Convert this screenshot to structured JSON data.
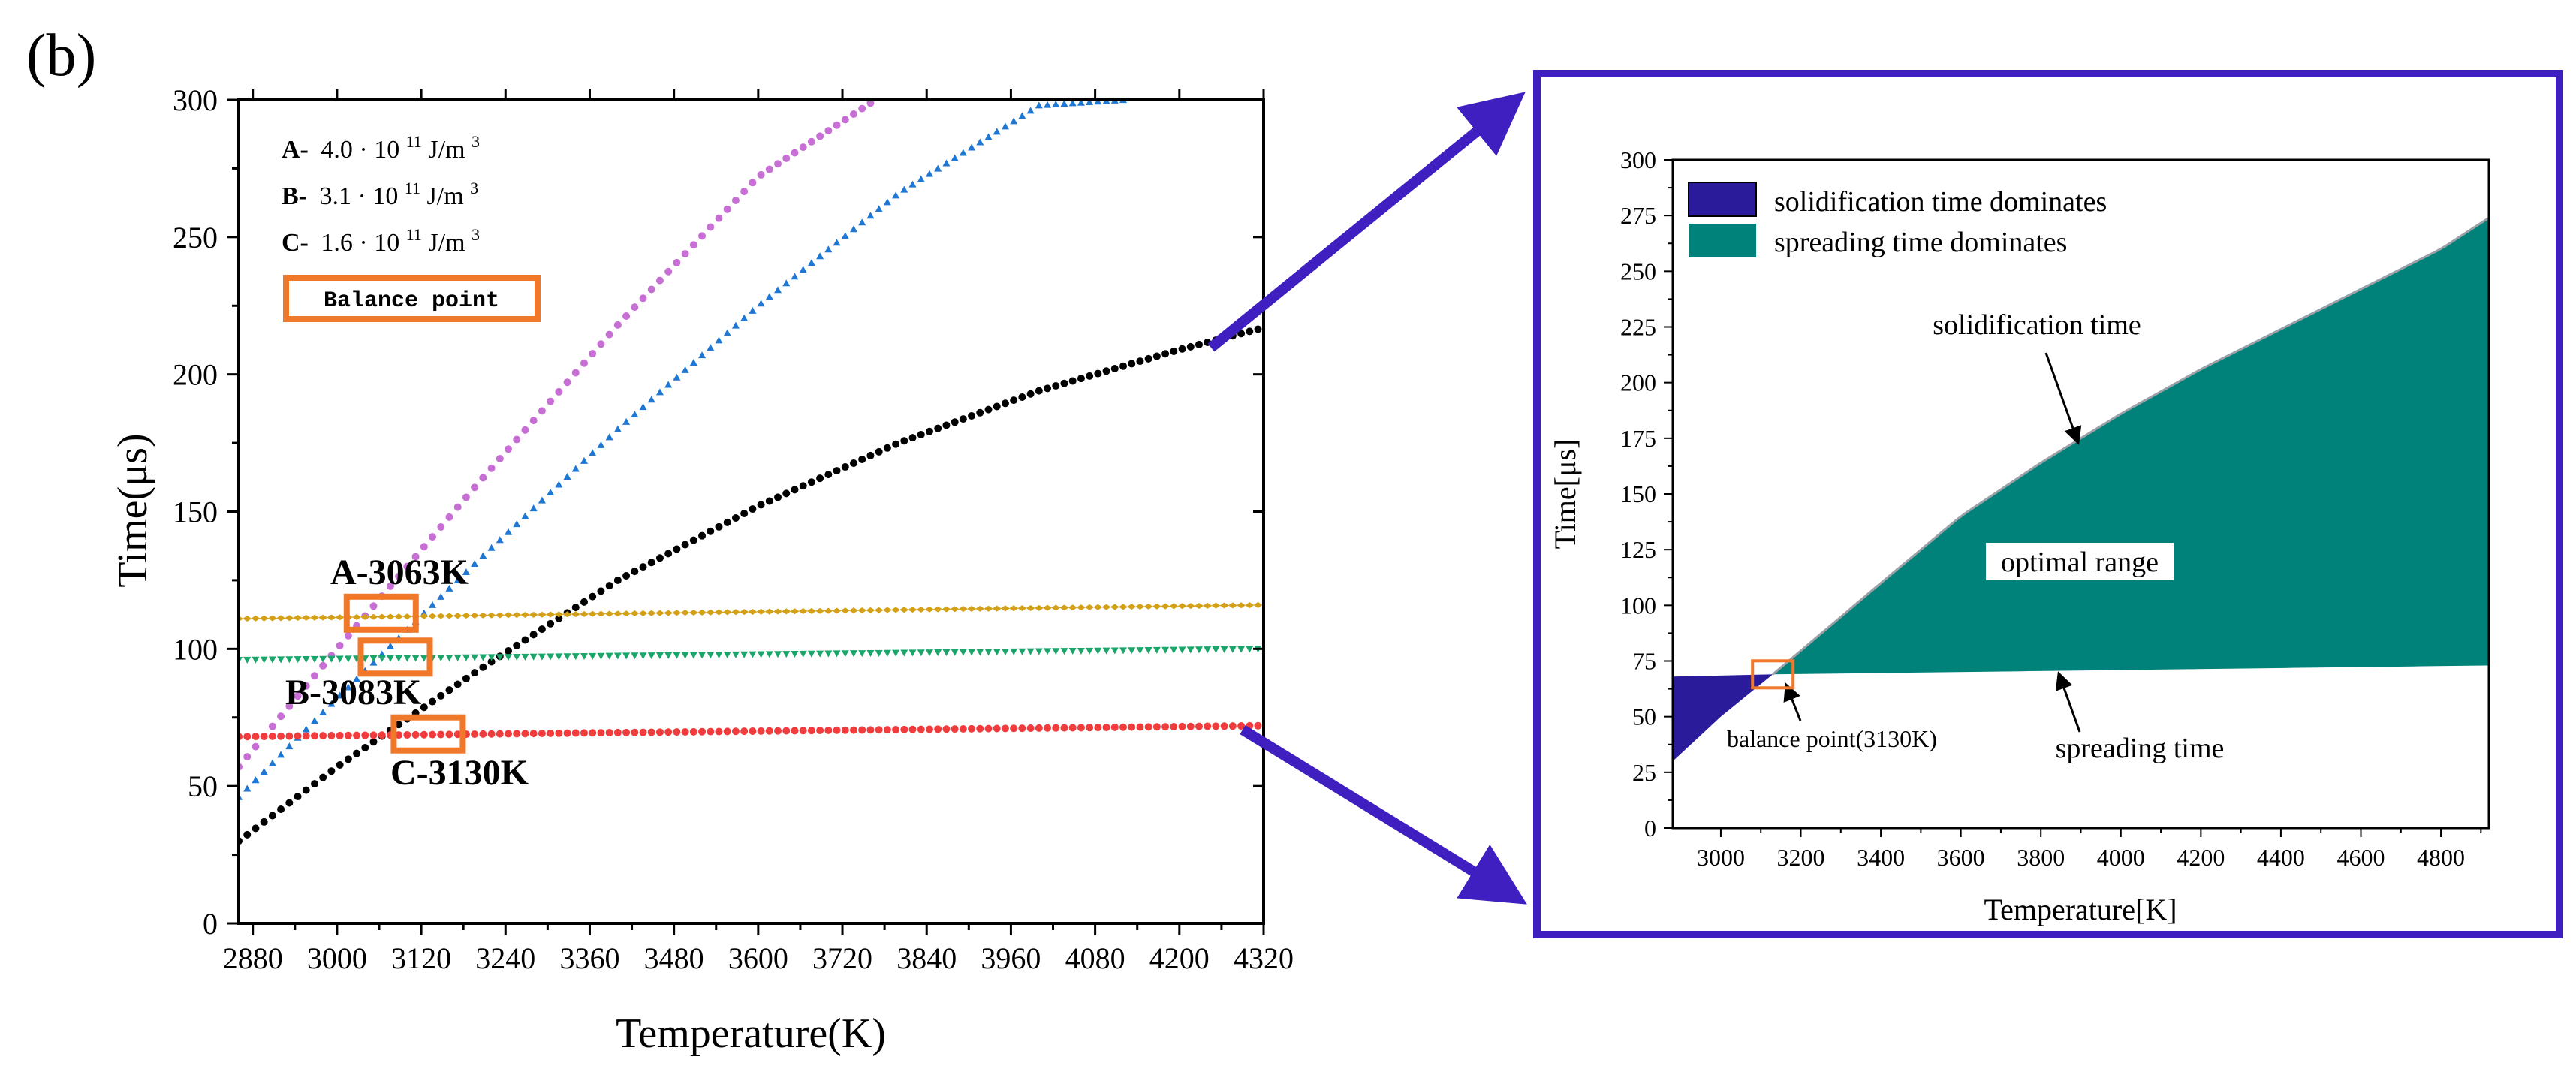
{
  "panel_label": "(b)",
  "colors": {
    "axis": "#000000",
    "series_a": "#c86fd6",
    "series_b": "#1f77d4",
    "series_c": "#000000",
    "spread_a": "#d4a017",
    "spread_b": "#1aa66a",
    "spread_c": "#f03c3c",
    "balance_box": "#f07828",
    "inset_frame": "#3f1fc0",
    "arrow": "#3f1fc0",
    "fill_solidification": "#2a1b9a",
    "fill_spreading": "#00817a"
  },
  "left_chart": {
    "xlabel": "Temperature(K)",
    "ylabel": "Time(μs)",
    "legend": [
      {
        "key": "A-",
        "text": "4.0 · 10",
        "exp": "11",
        "unit": " J/m",
        "unit_exp": "3"
      },
      {
        "key": "B-",
        "text": "3.1 · 10",
        "exp": "11",
        "unit": " J/m",
        "unit_exp": "3"
      },
      {
        "key": "C-",
        "text": "1.6 · 10",
        "exp": "11",
        "unit": " J/m",
        "unit_exp": "3"
      }
    ],
    "balance_legend_label": "Balance point",
    "annotations": [
      {
        "id": "A",
        "text": "A-3063K"
      },
      {
        "id": "B",
        "text": "B-3083K"
      },
      {
        "id": "C",
        "text": "C-3130K"
      }
    ]
  },
  "right_chart": {
    "xlabel": "Temperature[K]",
    "ylabel": "Time[μs]",
    "legend": [
      {
        "text": "solidification time dominates",
        "fill": "fill_solidification"
      },
      {
        "text": "spreading time dominates",
        "fill": "fill_spreading"
      }
    ],
    "annotations": {
      "solidification": "solidification time",
      "optimal": "optimal range",
      "balance": "balance point(3130K)",
      "spreading": "spreading time"
    }
  },
  "chart_data": [
    {
      "type": "scatter",
      "xlim": [
        2860,
        4320
      ],
      "ylim": [
        0,
        300
      ],
      "x_ticks": [
        2880,
        3000,
        3120,
        3240,
        3360,
        3480,
        3600,
        3720,
        3840,
        3960,
        4080,
        4200,
        4320
      ],
      "y_ticks": [
        0,
        50,
        100,
        150,
        200,
        250,
        300
      ],
      "series": [
        {
          "name": "A-",
          "role": "solidification",
          "color": "#c86fd6",
          "x": [
            2860,
            3000,
            3200,
            3400,
            3600,
            3767
          ],
          "y": [
            57,
            100,
            160,
            218,
            272,
            300
          ]
        },
        {
          "name": "B-",
          "role": "solidification",
          "color": "#1f77d4",
          "x": [
            2860,
            3000,
            3200,
            3400,
            3600,
            3800,
            4000,
            4122
          ],
          "y": [
            46,
            82,
            132,
            180,
            225,
            266,
            298,
            300
          ]
        },
        {
          "name": "C-",
          "role": "solidification",
          "color": "#000000",
          "x": [
            2860,
            3000,
            3200,
            3400,
            3600,
            3800,
            4000,
            4200,
            4320
          ],
          "y": [
            30,
            57,
            92,
            125,
            152,
            175,
            194,
            209,
            217
          ]
        },
        {
          "name": "A-",
          "role": "spreading",
          "color": "#d4a017",
          "x": [
            2860,
            4320
          ],
          "y": [
            111,
            116
          ]
        },
        {
          "name": "B-",
          "role": "spreading",
          "color": "#1aa66a",
          "x": [
            2860,
            4320
          ],
          "y": [
            96,
            100
          ]
        },
        {
          "name": "C-",
          "role": "spreading",
          "color": "#f03c3c",
          "x": [
            2860,
            4320
          ],
          "y": [
            68,
            72
          ]
        }
      ],
      "balance_points": [
        {
          "name": "A-3063K",
          "x": 3063,
          "y": 113
        },
        {
          "name": "B-3083K",
          "x": 3083,
          "y": 97
        },
        {
          "name": "C-3130K",
          "x": 3130,
          "y": 69
        }
      ]
    },
    {
      "type": "area",
      "xlim": [
        2880,
        4920
      ],
      "ylim": [
        0,
        300
      ],
      "x_ticks": [
        3000,
        3200,
        3400,
        3600,
        3800,
        4000,
        4200,
        4400,
        4600,
        4800
      ],
      "y_ticks": [
        0,
        25,
        50,
        75,
        100,
        125,
        150,
        175,
        200,
        225,
        250,
        275,
        300
      ],
      "series": [
        {
          "name": "solidification time",
          "x": [
            2880,
            3000,
            3130,
            3400,
            3600,
            3800,
            4000,
            4200,
            4400,
            4600,
            4800,
            4920
          ],
          "y": [
            30,
            50,
            69,
            110,
            140,
            164,
            186,
            206,
            224,
            242,
            260,
            274
          ]
        },
        {
          "name": "spreading time",
          "x": [
            2880,
            3130,
            4920
          ],
          "y": [
            68,
            69,
            73
          ]
        }
      ],
      "balance_point": {
        "x": 3130,
        "y": 69
      }
    }
  ]
}
